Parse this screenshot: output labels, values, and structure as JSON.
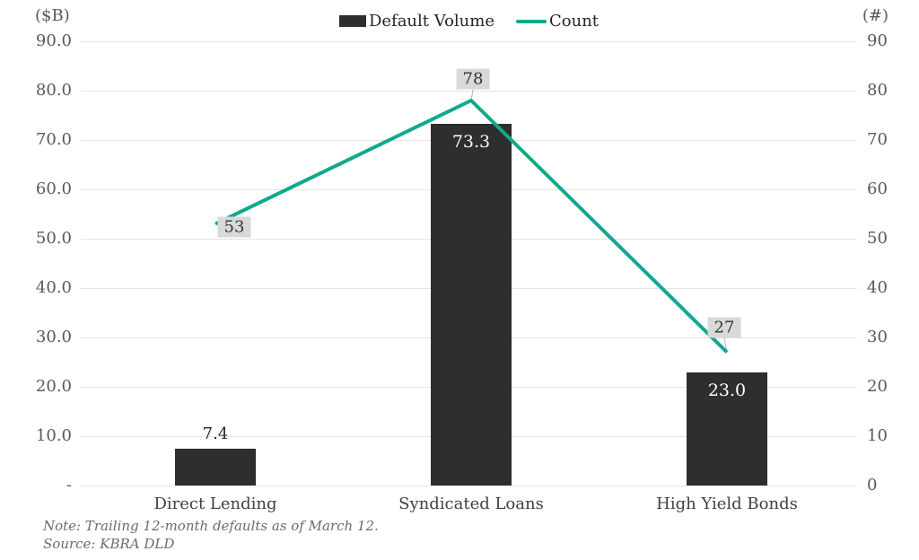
{
  "colors": {
    "bar": "#2e2e2e",
    "line": "#12a88e",
    "grid": "#e4e4e4",
    "tick_text": "#595959",
    "label_box_bg": "#d9d9d9",
    "leader": "#b3b3b3"
  },
  "chart_data": {
    "type": "bar+line combo",
    "categories": [
      "Direct Lending",
      "Syndicated Loans",
      "High Yield Bonds"
    ],
    "series": [
      {
        "name": "Default Volume",
        "type": "bar",
        "axis": "left",
        "values": [
          7.4,
          73.3,
          23.0
        ],
        "labels": [
          "7.4",
          "73.3",
          "23.0"
        ]
      },
      {
        "name": "Count",
        "type": "line",
        "axis": "right",
        "values": [
          53,
          78,
          27
        ],
        "labels": [
          "53",
          "78",
          "27"
        ]
      }
    ],
    "left_axis": {
      "label": "($B)",
      "ylim": [
        0,
        90
      ],
      "ticks": [
        "90.0",
        "80.0",
        "70.0",
        "60.0",
        "50.0",
        "40.0",
        "30.0",
        "20.0",
        "10.0",
        "-"
      ]
    },
    "right_axis": {
      "label": "(#)",
      "ylim": [
        0,
        90
      ],
      "ticks": [
        "90",
        "80",
        "70",
        "60",
        "50",
        "40",
        "30",
        "20",
        "10",
        "0"
      ]
    },
    "grid": true,
    "legend_position": "top-center",
    "note": "Note: Trailing 12-month defaults as of March 12.",
    "source": "Source: KBRA DLD"
  }
}
